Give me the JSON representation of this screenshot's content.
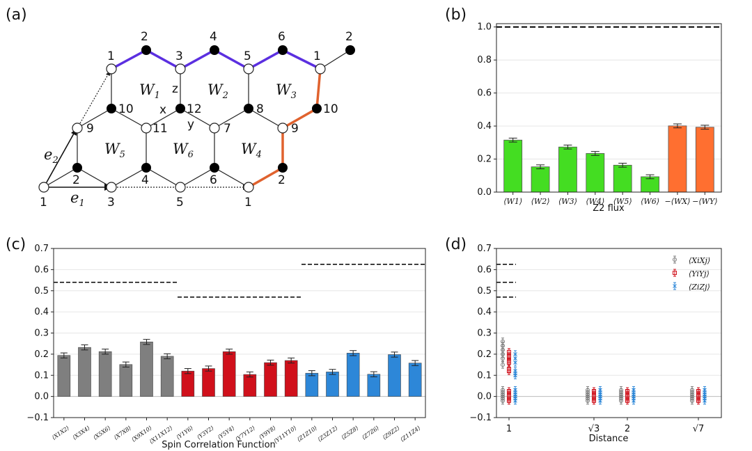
{
  "lattice": {
    "panel_label": "(a)",
    "site_labels": [
      "2",
      "4",
      "6",
      "2",
      "1",
      "3",
      "5",
      "1",
      "10",
      "12",
      "8",
      "10",
      "9",
      "11",
      "7",
      "9",
      "2",
      "4",
      "6",
      "2",
      "1",
      "3",
      "5",
      "1"
    ],
    "bond_labels": [
      "z",
      "x",
      "y"
    ],
    "plaquettes": [
      "W1",
      "W2",
      "W3",
      "W4",
      "W5",
      "W6"
    ],
    "vectors": [
      "e1",
      "e2"
    ],
    "colors": {
      "purple_bonds": "#5b2fe0",
      "orange_bonds": "#e0622e"
    }
  },
  "chart_data": [
    {
      "panel": "(b)",
      "type": "bar",
      "categories": [
        "⟨W1⟩",
        "⟨W2⟩",
        "⟨W3⟩",
        "⟨W4⟩",
        "⟨W5⟩",
        "⟨W6⟩",
        "−⟨WX⟩",
        "−⟨WY⟩"
      ],
      "values": [
        0.315,
        0.153,
        0.273,
        0.234,
        0.163,
        0.093,
        0.401,
        0.393
      ],
      "errors": [
        0.012,
        0.012,
        0.012,
        0.012,
        0.012,
        0.012,
        0.012,
        0.012
      ],
      "bar_colors": [
        "#44dd22",
        "#44dd22",
        "#44dd22",
        "#44dd22",
        "#44dd22",
        "#44dd22",
        "#ff6f30",
        "#ff6f30"
      ],
      "reference_lines": [
        1.0
      ],
      "xlabel": "Z2 flux",
      "ylabel": "",
      "ylim": [
        0,
        1.02
      ],
      "yticks": [
        "0.0",
        "0.2",
        "0.4",
        "0.6",
        "0.8",
        "1.0"
      ],
      "grid": "horizontal"
    },
    {
      "panel": "(c)",
      "type": "bar",
      "categories": [
        "⟨X1X2⟩",
        "⟨X3X4⟩",
        "⟨X5X6⟩",
        "⟨X7X8⟩",
        "⟨X9X10⟩",
        "⟨X11X12⟩",
        "⟨Y1Y6⟩",
        "⟨Y3Y2⟩",
        "⟨Y5Y4⟩",
        "⟨Y7Y12⟩",
        "⟨Y9Y8⟩",
        "⟨Y11Y10⟩",
        "⟨Z1Z10⟩",
        "⟨Z3Z12⟩",
        "⟨Z5Z8⟩",
        "⟨Z7Z6⟩",
        "⟨Z9Z2⟩",
        "⟨Z11Z4⟩"
      ],
      "values": [
        0.194,
        0.232,
        0.212,
        0.151,
        0.258,
        0.19,
        0.12,
        0.132,
        0.212,
        0.104,
        0.16,
        0.17,
        0.11,
        0.116,
        0.205,
        0.105,
        0.198,
        0.158
      ],
      "errors": [
        0.012,
        0.012,
        0.012,
        0.012,
        0.012,
        0.012,
        0.012,
        0.012,
        0.012,
        0.012,
        0.012,
        0.012,
        0.012,
        0.012,
        0.012,
        0.012,
        0.012,
        0.012
      ],
      "groups": [
        {
          "name": "X",
          "color": "#7f7f7f",
          "reference": 0.54
        },
        {
          "name": "Y",
          "color": "#d0101b",
          "reference": 0.47
        },
        {
          "name": "Z",
          "color": "#2d87d8",
          "reference": 0.625
        }
      ],
      "xlabel": "Spin Correlation Function",
      "ylabel": "",
      "ylim": [
        -0.1,
        0.7
      ],
      "yticks": [
        "−0.1",
        "0.0",
        "0.1",
        "0.2",
        "0.3",
        "0.4",
        "0.5",
        "0.6",
        "0.7"
      ],
      "grid": "horizontal"
    },
    {
      "panel": "(d)",
      "type": "scatter",
      "xlabel": "Distance",
      "ylabel": "",
      "xticks": [
        "1",
        "√3",
        "2",
        "√7"
      ],
      "ylim": [
        -0.1,
        0.7
      ],
      "yticks": [
        "−0.1",
        "0.0",
        "0.1",
        "0.2",
        "0.3",
        "0.4",
        "0.5",
        "0.6",
        "0.7"
      ],
      "reference_lines": [
        0.625,
        0.54,
        0.47
      ],
      "legend_position": "top-right",
      "series": [
        {
          "name": "⟨XiXj⟩",
          "color": "#7f7f7f",
          "marker": "o",
          "near_values": [
            0.26,
            0.24,
            0.22,
            0.2,
            0.18,
            0.15
          ],
          "far_values": [
            0.03,
            0.02,
            0.01,
            0.0,
            -0.01,
            -0.02
          ]
        },
        {
          "name": "⟨YiYj⟩",
          "color": "#d0101b",
          "marker": "s",
          "near_values": [
            0.21,
            0.19,
            0.17,
            0.16,
            0.13,
            0.12
          ],
          "far_values": [
            0.025,
            0.015,
            0.005,
            0.0,
            -0.01,
            -0.02
          ]
        },
        {
          "name": "⟨ZiZj⟩",
          "color": "#2d87d8",
          "marker": "x",
          "near_values": [
            0.2,
            0.18,
            0.16,
            0.12,
            0.11,
            0.1
          ],
          "far_values": [
            0.03,
            0.02,
            0.01,
            0.0,
            -0.01,
            -0.02
          ]
        }
      ],
      "far_groups": [
        "√3",
        "2",
        "√7"
      ]
    }
  ]
}
